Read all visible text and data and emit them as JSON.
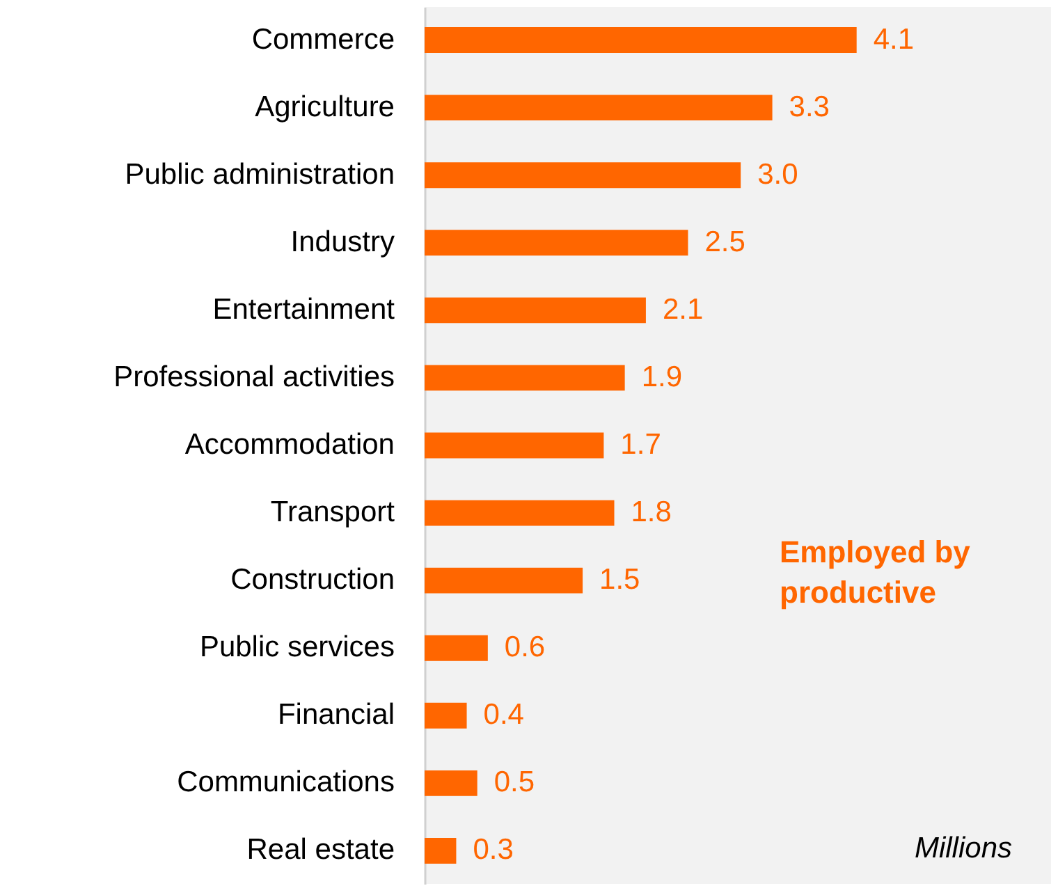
{
  "chart_data": {
    "type": "bar",
    "orientation": "horizontal",
    "color": "#ff6600",
    "categories": [
      "Commerce",
      "Agriculture",
      "Public administration",
      "Industry",
      "Entertainment",
      "Professional activities",
      "Accommodation",
      "Transport",
      "Construction",
      "Public services",
      "Financial",
      "Communications",
      "Real estate"
    ],
    "values": [
      4.1,
      3.3,
      3.0,
      2.5,
      2.1,
      1.9,
      1.7,
      1.8,
      1.5,
      0.6,
      0.4,
      0.5,
      0.3
    ],
    "value_labels": [
      "4.1",
      "3.3",
      "3.0",
      "2.5",
      "2.1",
      "1.9",
      "1.7",
      "1.8",
      "1.5",
      "0.6",
      "0.4",
      "0.5",
      "0.3"
    ],
    "annotations": [
      "Employed by productive",
      "Millions"
    ]
  }
}
